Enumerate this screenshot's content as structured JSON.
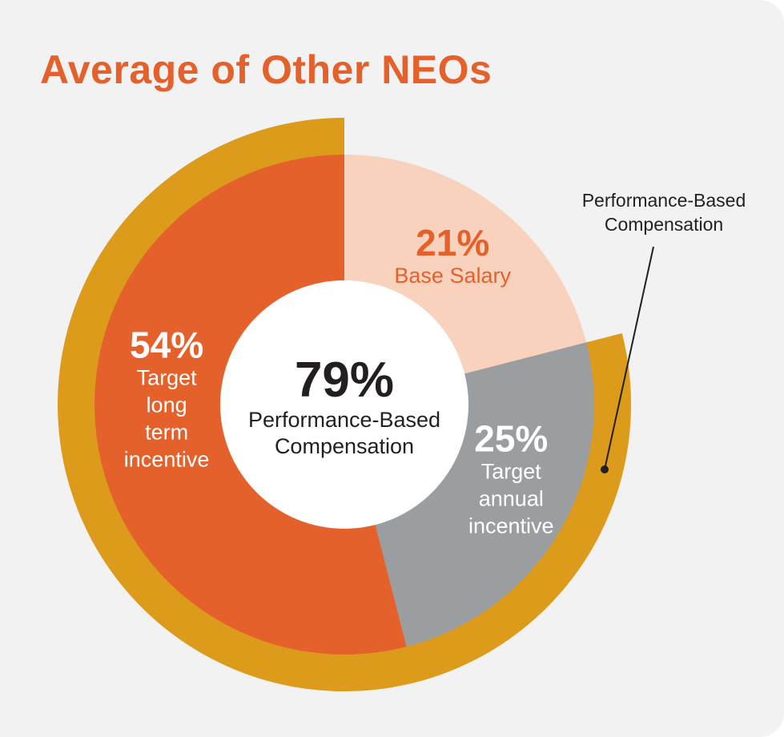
{
  "title": "Average of Other NEOs",
  "colors": {
    "background": "#f2f2f2",
    "title": "#e5612c",
    "outer_ring": "#dc9b1b",
    "center": "#ffffff",
    "annotation_line": "#231f20"
  },
  "chart_data": {
    "type": "pie",
    "subtype": "donut with partial outer ring",
    "slices": [
      {
        "label": "Base Salary",
        "value": 21,
        "value_label": "21%",
        "color": "#f8d2bd",
        "text_color": "#e5612c",
        "label_lines": [
          "Base Salary"
        ]
      },
      {
        "label": "Target annual incentive",
        "value": 25,
        "value_label": "25%",
        "color": "#9b9ea1",
        "text_color": "#ffffff",
        "label_lines": [
          "Target",
          "annual",
          "incentive"
        ]
      },
      {
        "label": "Target long term incentive",
        "value": 54,
        "value_label": "54%",
        "color": "#e5612c",
        "text_color": "#ffffff",
        "label_lines": [
          "Target",
          "long",
          "term",
          "incentive"
        ]
      }
    ],
    "outer_ring": {
      "label": "Performance-Based Compensation",
      "label_lines": [
        "Performance-Based",
        "Compensation"
      ],
      "value": 79,
      "color": "#dc9b1b"
    },
    "center": {
      "value_label": "79%",
      "label_lines": [
        "Performance-Based",
        "Compensation"
      ]
    }
  }
}
